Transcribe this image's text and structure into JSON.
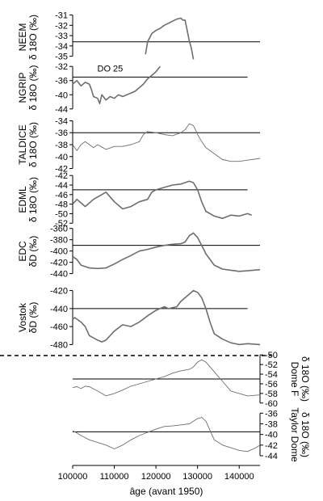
{
  "chart_data": {
    "type": "line",
    "xlabel": "âge (avant 1950)",
    "x_ticks": [
      100000,
      110000,
      120000,
      130000,
      140000
    ],
    "xlim": [
      100000,
      145000
    ],
    "panels": [
      {
        "id": "neem",
        "ylabel": "NEEM\nδ 18O (‰)",
        "side": "left",
        "y_ticks": [
          -31,
          -32,
          -33,
          -34,
          -35
        ],
        "ylim": [
          -35.5,
          -30.8
        ],
        "ref_line": -33.6,
        "ref_range": [
          100000,
          145000
        ],
        "series": [
          {
            "x": [
              117500,
              118000,
              118500,
              119000,
              120000,
              121000,
              122000,
              123000,
              124000,
              125000,
              126000,
              126500,
              127000,
              127500,
              128000,
              128500,
              129000
            ],
            "y": [
              -34.8,
              -33.6,
              -33.2,
              -32.8,
              -32.5,
              -32.3,
              -32.0,
              -31.8,
              -31.6,
              -31.4,
              -31.3,
              -31.5,
              -31.5,
              -32.5,
              -33.5,
              -34.2,
              -35.3
            ]
          }
        ]
      },
      {
        "id": "ngrip",
        "ylabel": "NGRIP\nδ 18O (‰)",
        "side": "left",
        "y_ticks": [
          -32,
          -36,
          -40,
          -44
        ],
        "ylim": [
          -44.5,
          -31.5
        ],
        "ref_line": -35,
        "ref_range": [
          100000,
          142000
        ],
        "annotation": {
          "text": "DO 25",
          "x": 109000,
          "y": -32.5
        },
        "series": [
          {
            "x": [
              100000,
              101000,
              102000,
              103000,
              104000,
              104500,
              105000,
              106000,
              106500,
              107000,
              108000,
              109000,
              110000,
              111000,
              112000,
              113000,
              114000,
              115000,
              116000,
              117000,
              118000,
              119000,
              120000,
              121000
            ],
            "y": [
              -37.0,
              -36.0,
              -37.5,
              -36.5,
              -37.0,
              -38.5,
              -40.5,
              -41.0,
              -42.5,
              -40.0,
              -41.5,
              -40.5,
              -41.0,
              -40.0,
              -40.5,
              -40.0,
              -39.5,
              -39.0,
              -38.0,
              -37.0,
              -35.5,
              -34.5,
              -33.5,
              -32.0
            ]
          }
        ]
      },
      {
        "id": "taldice",
        "ylabel": "TALDICE\nδ 18O (‰)",
        "side": "left",
        "y_ticks": [
          -34,
          -36,
          -38,
          -40,
          -42
        ],
        "ylim": [
          -42.2,
          -33.8
        ],
        "ref_line": -36,
        "ref_range": [
          100000,
          145000
        ],
        "series": [
          {
            "x": [
              100000,
              101000,
              102000,
              103000,
              105000,
              106000,
              108000,
              110000,
              112000,
              114000,
              116000,
              117000,
              118000,
              120000,
              122000,
              124000,
              126000,
              127000,
              128000,
              129000,
              129500,
              130000,
              131000,
              132000,
              134000,
              136000,
              138000,
              140000,
              142000,
              145000
            ],
            "y": [
              -38.0,
              -39.0,
              -38.0,
              -37.5,
              -38.5,
              -38.0,
              -38.8,
              -38.3,
              -38.3,
              -38.0,
              -37.5,
              -36.3,
              -35.8,
              -36.0,
              -36.3,
              -36.5,
              -36.0,
              -35.5,
              -34.5,
              -34.8,
              -35.5,
              -36.3,
              -37.5,
              -38.5,
              -39.5,
              -40.5,
              -40.8,
              -40.8,
              -40.6,
              -40.3
            ]
          }
        ]
      },
      {
        "id": "edml",
        "ylabel": "EDML\nδ 18O (‰)",
        "side": "left",
        "y_ticks": [
          -42,
          -44,
          -46,
          -48,
          -50,
          -52
        ],
        "ylim": [
          -52.3,
          -41.8
        ],
        "ref_line": -45,
        "ref_range": [
          100000,
          142000
        ],
        "series": [
          {
            "x": [
              100000,
              101000,
              103000,
              105000,
              107000,
              108000,
              110000,
              112000,
              114000,
              116000,
              118000,
              119000,
              120000,
              122000,
              124000,
              126000,
              128000,
              129000,
              130000,
              131000,
              132000,
              134000,
              136000,
              138000,
              140000,
              142000,
              143000
            ],
            "y": [
              -48.0,
              -47.0,
              -48.5,
              -47.0,
              -46.0,
              -45.5,
              -47.5,
              -49.0,
              -48.5,
              -47.5,
              -47.0,
              -45.5,
              -45.0,
              -44.5,
              -44.0,
              -43.8,
              -43.2,
              -43.5,
              -45.0,
              -47.5,
              -49.5,
              -50.5,
              -51.0,
              -50.3,
              -50.5,
              -50.0,
              -50.3
            ]
          }
        ]
      },
      {
        "id": "edc",
        "ylabel": "EDC\nδD (‰)",
        "side": "left",
        "y_ticks": [
          -360,
          -380,
          -400,
          -420,
          -440
        ],
        "ylim": [
          -442,
          -359
        ],
        "ref_line": -390,
        "ref_range": [
          100000,
          145000
        ],
        "series": [
          {
            "x": [
              100000,
              101000,
              102000,
              104000,
              106000,
              108000,
              110000,
              112000,
              114000,
              116000,
              118000,
              120000,
              122000,
              124000,
              126000,
              127000,
              128000,
              129000,
              130000,
              131000,
              132000,
              134000,
              136000,
              138000,
              140000,
              142000,
              145000
            ],
            "y": [
              -410.0,
              -415.0,
              -425.0,
              -430.0,
              -431.0,
              -430.0,
              -423.0,
              -415.0,
              -408.0,
              -400.0,
              -397.0,
              -393.0,
              -390.0,
              -388.0,
              -387.0,
              -384.0,
              -373.0,
              -368.0,
              -376.0,
              -390.0,
              -405.0,
              -425.0,
              -432.0,
              -434.0,
              -436.0,
              -435.0,
              -433.0
            ]
          }
        ]
      },
      {
        "id": "vostok",
        "ylabel": "Vostok\nδD (‰)",
        "side": "left",
        "y_ticks": [
          -420,
          -440,
          -460,
          -480
        ],
        "ylim": [
          -485,
          -415
        ],
        "ref_line": -440,
        "ref_range": [
          100000,
          142000
        ],
        "series": [
          {
            "x": [
              100000,
              100500,
              102000,
              103000,
              104000,
              106000,
              107000,
              108000,
              110000,
              112000,
              114000,
              116000,
              118000,
              120000,
              122000,
              123000,
              125000,
              126000,
              127000,
              128000,
              129000,
              130000,
              131000,
              132000,
              133000,
              134000,
              136000,
              138000,
              140000,
              142000,
              145000
            ],
            "y": [
              -452.0,
              -450.0,
              -455.0,
              -460.0,
              -470.0,
              -475.0,
              -477.0,
              -475.0,
              -465.0,
              -458.0,
              -460.0,
              -455.0,
              -448.0,
              -442.0,
              -438.0,
              -440.0,
              -438.0,
              -432.0,
              -428.0,
              -424.0,
              -420.0,
              -422.0,
              -428.0,
              -440.0,
              -455.0,
              -468.0,
              -474.0,
              -478.0,
              -480.0,
              -479.0,
              -480.0
            ]
          }
        ]
      },
      {
        "id": "domef",
        "ylabel": "δ 18O (‰)\nDome F",
        "side": "right",
        "y_ticks": [
          -50,
          -52,
          -54,
          -56,
          -58,
          -60
        ],
        "ylim": [
          -60.2,
          -49.8
        ],
        "ref_line": -55,
        "ref_range": [
          100000,
          145000
        ],
        "series": [
          {
            "x": [
              100000,
              101000,
              102000,
              103000,
              104000,
              106000,
              108000,
              110000,
              112000,
              114000,
              116000,
              118000,
              120000,
              122000,
              124000,
              126000,
              128000,
              129000,
              130000,
              131000,
              132000,
              134000,
              136000,
              138000,
              140000,
              142000,
              145000
            ],
            "y": [
              -56.8,
              -56.6,
              -57.0,
              -56.5,
              -56.6,
              -57.5,
              -58.5,
              -58.0,
              -57.3,
              -56.5,
              -56.0,
              -55.5,
              -55.0,
              -54.5,
              -53.8,
              -53.3,
              -53.0,
              -52.5,
              -51.5,
              -51.0,
              -51.5,
              -53.5,
              -55.5,
              -57.5,
              -58.0,
              -58.5,
              -58.3
            ]
          }
        ]
      },
      {
        "id": "taylor",
        "ylabel": "δ 18O (‰)\nTaylor Dome",
        "side": "right",
        "y_ticks": [
          -36,
          -38,
          -40,
          -42,
          -44
        ],
        "ylim": [
          -44.3,
          -35.8
        ],
        "ref_line": -39.5,
        "ref_range": [
          100000,
          145000
        ],
        "series": [
          {
            "x": [
              100000,
              101000,
              102000,
              104000,
              106000,
              108000,
              110000,
              112000,
              114000,
              116000,
              118000,
              120000,
              122000,
              124000,
              126000,
              128000,
              129000,
              130000,
              131000,
              132000,
              134000,
              136000,
              138000,
              140000,
              142000,
              144000,
              145000
            ],
            "y": [
              -39.3,
              -39.7,
              -40.2,
              -41.0,
              -41.5,
              -42.0,
              -42.7,
              -42.0,
              -41.0,
              -40.2,
              -39.6,
              -39.0,
              -38.5,
              -38.4,
              -38.2,
              -38.0,
              -37.5,
              -37.0,
              -36.8,
              -37.5,
              -41.0,
              -42.0,
              -42.5,
              -43.0,
              -43.2,
              -42.5,
              -42.0
            ]
          }
        ]
      }
    ]
  }
}
